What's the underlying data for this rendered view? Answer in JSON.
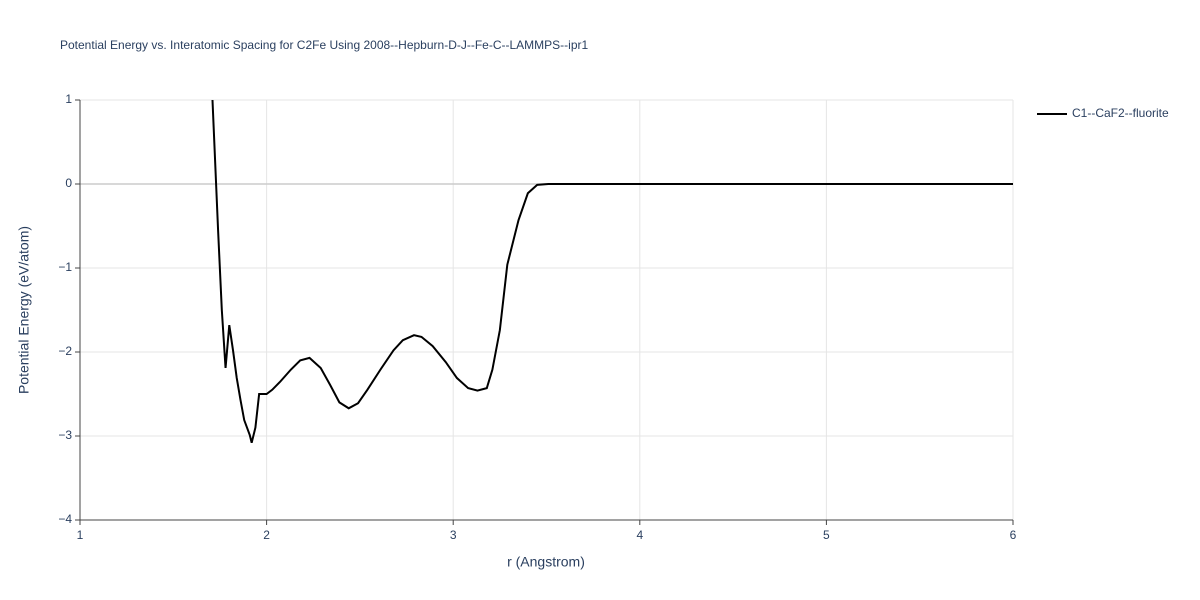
{
  "chart_data": {
    "type": "line",
    "title": "Potential Energy vs. Interatomic Spacing for C2Fe Using 2008--Hepburn-D-J--Fe-C--LAMMPS--ipr1",
    "x_label": "r (Angstrom)",
    "y_label": "Potential Energy (eV/atom)",
    "xlim": [
      1,
      6
    ],
    "ylim": [
      -4,
      1
    ],
    "xticks": [
      1,
      2,
      3,
      4,
      5,
      6
    ],
    "yticks": [
      {
        "value": -4,
        "label": "−4"
      },
      {
        "value": -3,
        "label": "−3"
      },
      {
        "value": -2,
        "label": "−2"
      },
      {
        "value": -1,
        "label": "−1"
      },
      0,
      1
    ],
    "grid": true,
    "legend": "top-right",
    "series": [
      {
        "name": "C1--CaF2--fluorite",
        "color": "#000000",
        "x": [
          1.71,
          1.74,
          1.76,
          1.78,
          1.8,
          1.82,
          1.84,
          1.86,
          1.88,
          1.91,
          1.92,
          1.94,
          1.96,
          2.0,
          2.03,
          2.07,
          2.13,
          2.18,
          2.23,
          2.29,
          2.34,
          2.39,
          2.44,
          2.49,
          2.54,
          2.61,
          2.68,
          2.73,
          2.79,
          2.83,
          2.89,
          2.96,
          3.02,
          3.08,
          3.13,
          3.18,
          3.21,
          3.25,
          3.29,
          3.35,
          3.4,
          3.45,
          3.51,
          6.0
        ],
        "values": [
          1.0,
          -0.55,
          -1.5,
          -2.19,
          -1.68,
          -1.98,
          -2.31,
          -2.57,
          -2.81,
          -2.99,
          -3.08,
          -2.9,
          -2.5,
          -2.5,
          -2.45,
          -2.36,
          -2.21,
          -2.1,
          -2.07,
          -2.19,
          -2.39,
          -2.6,
          -2.67,
          -2.61,
          -2.45,
          -2.21,
          -1.98,
          -1.86,
          -1.8,
          -1.82,
          -1.93,
          -2.12,
          -2.31,
          -2.43,
          -2.46,
          -2.43,
          -2.21,
          -1.74,
          -0.96,
          -0.43,
          -0.11,
          -0.01,
          0,
          0
        ]
      }
    ]
  }
}
